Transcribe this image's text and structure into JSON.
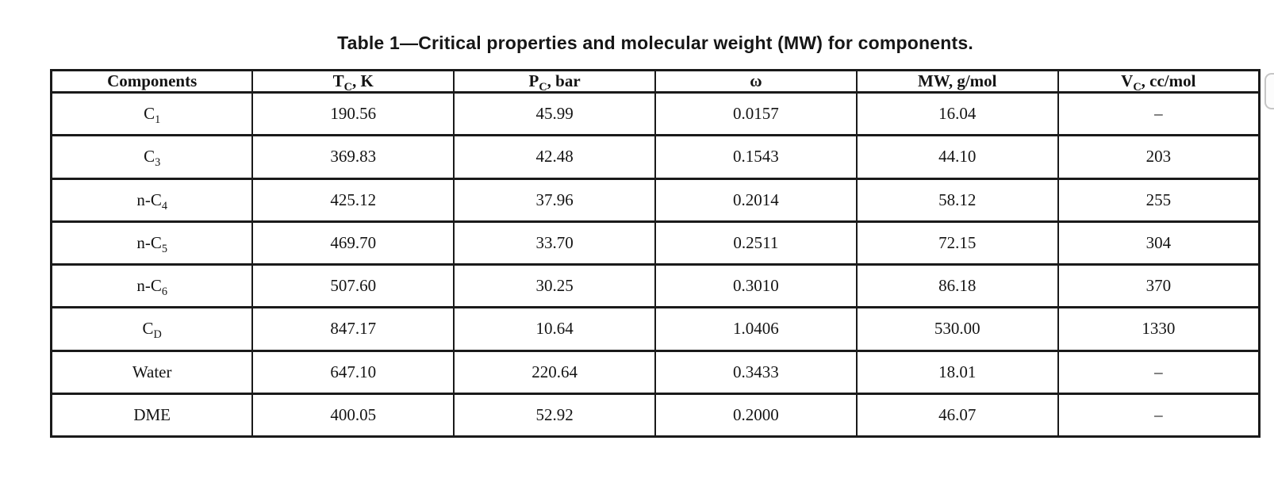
{
  "title": "Table 1—Critical properties and molecular weight (MW) for components.",
  "table": {
    "columns": [
      {
        "base": "Components",
        "sub": "",
        "rest": ""
      },
      {
        "base": "T",
        "sub": "C",
        "rest": ", K"
      },
      {
        "base": "P",
        "sub": "C",
        "rest": ", bar"
      },
      {
        "base": "ω",
        "sub": "",
        "rest": ""
      },
      {
        "base": "MW, g/mol",
        "sub": "",
        "rest": ""
      },
      {
        "base": "V",
        "sub": "C",
        "rest": ", cc/mol"
      }
    ],
    "rows": [
      {
        "component": {
          "pre": "C",
          "sub": "1"
        },
        "values": [
          "190.56",
          "45.99",
          "0.0157",
          "16.04",
          "–"
        ]
      },
      {
        "component": {
          "pre": "C",
          "sub": "3"
        },
        "values": [
          "369.83",
          "42.48",
          "0.1543",
          "44.10",
          "203"
        ]
      },
      {
        "component": {
          "pre": "n-C",
          "sub": "4"
        },
        "values": [
          "425.12",
          "37.96",
          "0.2014",
          "58.12",
          "255"
        ]
      },
      {
        "component": {
          "pre": "n-C",
          "sub": "5"
        },
        "values": [
          "469.70",
          "33.70",
          "0.2511",
          "72.15",
          "304"
        ]
      },
      {
        "component": {
          "pre": "n-C",
          "sub": "6"
        },
        "values": [
          "507.60",
          "30.25",
          "0.3010",
          "86.18",
          "370"
        ]
      },
      {
        "component": {
          "pre": "C",
          "sub": "D"
        },
        "values": [
          "847.17",
          "10.64",
          "1.0406",
          "530.00",
          "1330"
        ]
      },
      {
        "component": {
          "pre": "Water",
          "sub": ""
        },
        "values": [
          "647.10",
          "220.64",
          "0.3433",
          "18.01",
          "–"
        ]
      },
      {
        "component": {
          "pre": "DME",
          "sub": ""
        },
        "values": [
          "400.05",
          "52.92",
          "0.2000",
          "46.07",
          "–"
        ]
      }
    ]
  },
  "chart_data": {
    "type": "table",
    "title": "Table 1—Critical properties and molecular weight (MW) for components.",
    "columns": [
      "Components",
      "TC, K",
      "PC, bar",
      "ω",
      "MW, g/mol",
      "VC, cc/mol"
    ],
    "rows": [
      [
        "C1",
        "190.56",
        "45.99",
        "0.0157",
        "16.04",
        "–"
      ],
      [
        "C3",
        "369.83",
        "42.48",
        "0.1543",
        "44.10",
        "203"
      ],
      [
        "n-C4",
        "425.12",
        "37.96",
        "0.2014",
        "58.12",
        "255"
      ],
      [
        "n-C5",
        "469.70",
        "33.70",
        "0.2511",
        "72.15",
        "304"
      ],
      [
        "n-C6",
        "507.60",
        "30.25",
        "0.3010",
        "86.18",
        "370"
      ],
      [
        "CD",
        "847.17",
        "10.64",
        "1.0406",
        "530.00",
        "1330"
      ],
      [
        "Water",
        "647.10",
        "220.64",
        "0.3433",
        "18.01",
        "–"
      ],
      [
        "DME",
        "400.05",
        "52.92",
        "0.2000",
        "46.07",
        "–"
      ]
    ]
  },
  "colors": {
    "text": "#141414",
    "table_border": "#1a1a1a",
    "edge_button_border": "#c6c6c6"
  }
}
